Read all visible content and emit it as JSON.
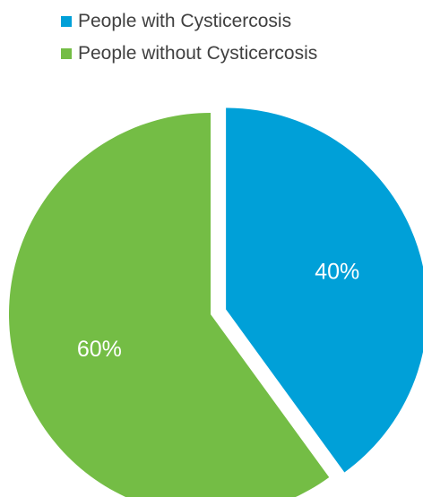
{
  "chart_data": {
    "type": "pie",
    "title": "",
    "legend_position": "top",
    "series": [
      {
        "name": "People with Cysticercosis",
        "value": 40,
        "label": "40%",
        "color": "#00a0d8",
        "exploded": true
      },
      {
        "name": "People without Cysticercosis",
        "value": 60,
        "label": "60%",
        "color": "#74bd45",
        "exploded": false
      }
    ]
  }
}
